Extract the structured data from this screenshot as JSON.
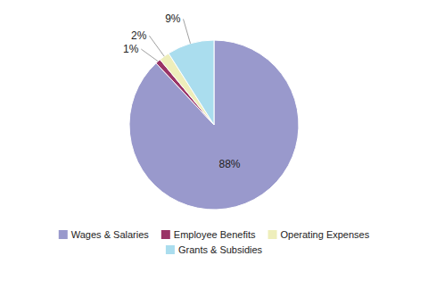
{
  "chart_data": {
    "type": "pie",
    "categories": [
      "Wages & Salaries",
      "Employee Benefits",
      "Operating Expenses",
      "Grants & Subsidies"
    ],
    "values": [
      88,
      1,
      2,
      9
    ],
    "value_labels": [
      "88%",
      "1%",
      "2%",
      "9%"
    ],
    "colors": [
      "#9999cc",
      "#993366",
      "#eeeebb",
      "#aaddee"
    ],
    "data_labels": true,
    "legend": "bottom"
  }
}
